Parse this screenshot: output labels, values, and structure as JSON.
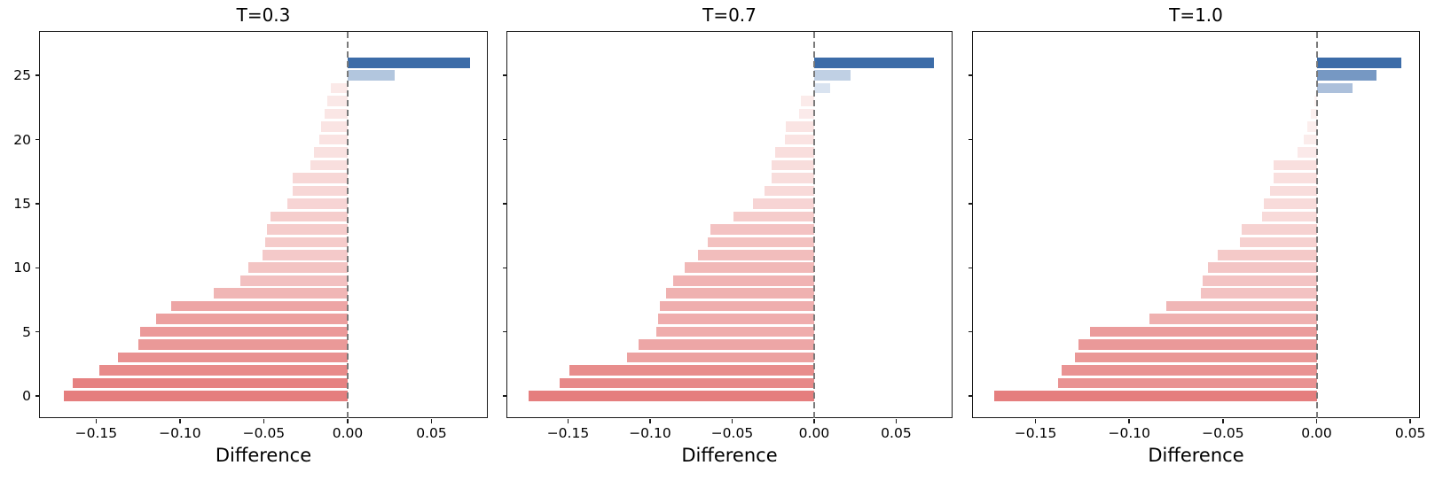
{
  "figure": {
    "background": "#ffffff",
    "xlabel": "Difference"
  },
  "theme": {
    "neg_color_min": "#fdf4f3",
    "neg_color_max": "#e57e7e",
    "pos_color_min": "#e9eff7",
    "pos_color_max": "#3c6ca8",
    "zero_line_color": "#7a7a7a",
    "spine_color": "#1a1a1a",
    "text_color": "#000000"
  },
  "chart_data": [
    {
      "type": "bar",
      "orientation": "horizontal",
      "title": "T=0.3",
      "xlabel": "Difference",
      "ylabel": "",
      "xlim": [
        -0.1835,
        0.0841
      ],
      "ylim": [
        -1.8,
        28.4
      ],
      "xticks": [
        -0.15,
        -0.1,
        -0.05,
        0.0,
        0.05
      ],
      "xtick_labels": [
        "−0.15",
        "−0.10",
        "−0.05",
        "0.00",
        "0.05"
      ],
      "yticks": [
        0,
        5,
        10,
        15,
        20,
        25
      ],
      "ytick_labels": [
        "0",
        "5",
        "10",
        "15",
        "20",
        "25"
      ],
      "show_ytick_labels": true,
      "zero_line": 0,
      "grid": false,
      "categories": [
        0,
        1,
        2,
        3,
        4,
        5,
        6,
        7,
        8,
        9,
        10,
        11,
        12,
        13,
        14,
        15,
        16,
        17,
        18,
        19,
        20,
        21,
        22,
        23,
        24,
        25,
        26
      ],
      "values": [
        -0.169,
        -0.164,
        -0.148,
        -0.137,
        -0.125,
        -0.124,
        -0.114,
        -0.105,
        -0.08,
        -0.064,
        -0.059,
        -0.051,
        -0.049,
        -0.048,
        -0.046,
        -0.036,
        -0.033,
        -0.033,
        -0.022,
        -0.02,
        -0.017,
        -0.016,
        -0.014,
        -0.012,
        -0.01,
        0.028,
        0.073
      ]
    },
    {
      "type": "bar",
      "orientation": "horizontal",
      "title": "T=0.7",
      "xlabel": "Difference",
      "ylabel": "",
      "xlim": [
        -0.187,
        0.0849
      ],
      "ylim": [
        -1.8,
        28.4
      ],
      "xticks": [
        -0.15,
        -0.1,
        -0.05,
        0.0,
        0.05
      ],
      "xtick_labels": [
        "−0.15",
        "−0.10",
        "−0.05",
        "0.00",
        "0.05"
      ],
      "yticks": [
        0,
        5,
        10,
        15,
        20,
        25
      ],
      "ytick_labels": [
        "0",
        "5",
        "10",
        "15",
        "20",
        "25"
      ],
      "show_ytick_labels": false,
      "zero_line": 0,
      "grid": false,
      "categories": [
        0,
        1,
        2,
        3,
        4,
        5,
        6,
        7,
        8,
        9,
        10,
        11,
        12,
        13,
        14,
        15,
        16,
        17,
        18,
        19,
        20,
        21,
        22,
        23,
        24,
        25,
        26
      ],
      "values": [
        -0.174,
        -0.155,
        -0.149,
        -0.114,
        -0.107,
        -0.096,
        -0.095,
        -0.094,
        -0.09,
        -0.086,
        -0.079,
        -0.071,
        -0.065,
        -0.063,
        -0.049,
        -0.037,
        -0.03,
        -0.026,
        -0.026,
        -0.024,
        -0.018,
        -0.017,
        -0.009,
        -0.008,
        0.01,
        0.022,
        0.073
      ]
    },
    {
      "type": "bar",
      "orientation": "horizontal",
      "title": "T=1.0",
      "xlabel": "Difference",
      "ylabel": "",
      "xlim": [
        -0.1834,
        0.0556
      ],
      "ylim": [
        -1.8,
        28.4
      ],
      "xticks": [
        -0.15,
        -0.1,
        -0.05,
        0.0,
        0.05
      ],
      "xtick_labels": [
        "−0.15",
        "−0.10",
        "−0.05",
        "0.00",
        "0.05"
      ],
      "yticks": [
        0,
        5,
        10,
        15,
        20,
        25
      ],
      "ytick_labels": [
        "0",
        "5",
        "10",
        "15",
        "20",
        "25"
      ],
      "show_ytick_labels": false,
      "zero_line": 0,
      "grid": false,
      "categories": [
        0,
        1,
        2,
        3,
        4,
        5,
        6,
        7,
        8,
        9,
        10,
        11,
        12,
        13,
        14,
        15,
        16,
        17,
        18,
        19,
        20,
        21,
        22,
        23,
        24,
        25,
        26
      ],
      "values": [
        -0.172,
        -0.138,
        -0.136,
        -0.129,
        -0.127,
        -0.121,
        -0.089,
        -0.08,
        -0.062,
        -0.061,
        -0.058,
        -0.053,
        -0.041,
        -0.04,
        -0.029,
        -0.028,
        -0.025,
        -0.023,
        -0.023,
        -0.01,
        -0.007,
        -0.005,
        -0.003,
        -0.001,
        0.019,
        0.032,
        0.045
      ]
    }
  ]
}
